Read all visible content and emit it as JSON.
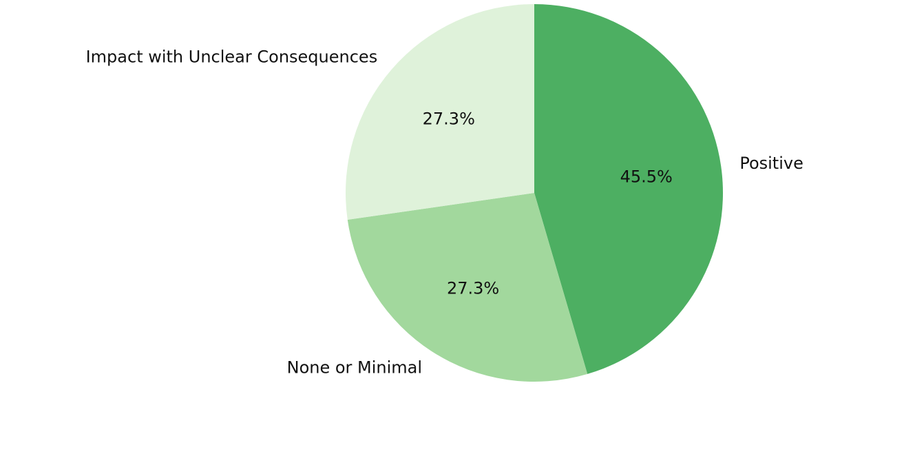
{
  "chart_data": {
    "type": "pie",
    "title": "",
    "start_angle_deg": 90,
    "direction": "clockwise",
    "slices": [
      {
        "label": "Positive",
        "value": 45.5,
        "pct_label": "45.5%",
        "color": "#4daf62"
      },
      {
        "label": "None or Minimal",
        "value": 27.3,
        "pct_label": "27.3%",
        "color": "#a2d89d"
      },
      {
        "label": "Impact with Unclear Consequences",
        "value": 27.3,
        "pct_label": "27.3%",
        "color": "#dff2da"
      }
    ]
  }
}
